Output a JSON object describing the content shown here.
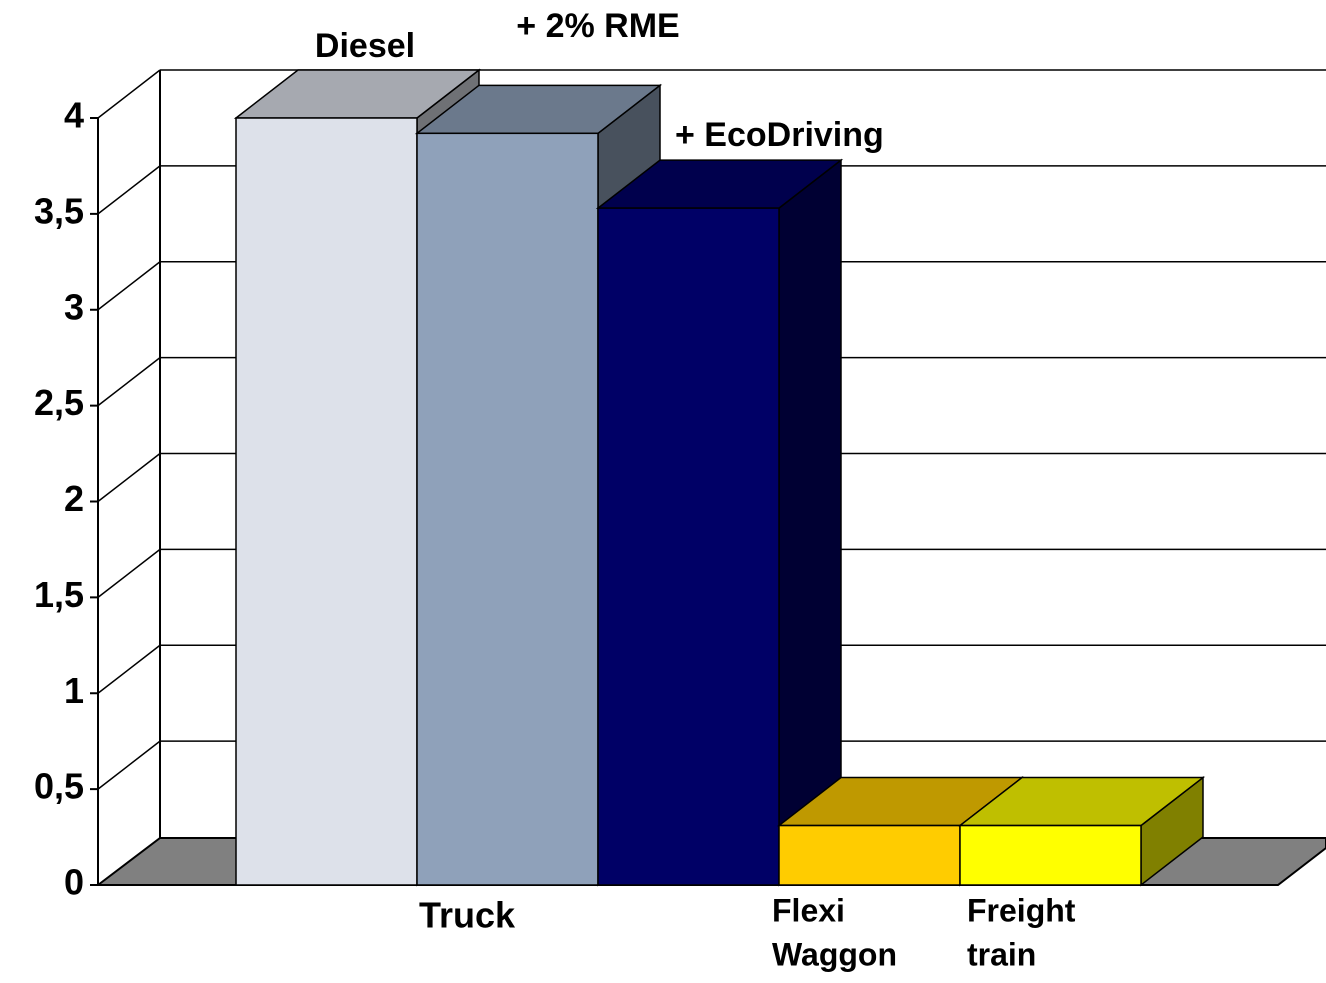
{
  "chart_data": {
    "type": "bar3d",
    "categories": [
      [
        "Truck"
      ],
      [
        "Flexi",
        "Waggon"
      ],
      [
        "Freight",
        "train"
      ]
    ],
    "series": [
      {
        "name": "Diesel",
        "color": "#dde1ea",
        "values": [
          4.0,
          null,
          null
        ]
      },
      {
        "name": "+ 2% RME",
        "color": "#8fa1ba",
        "values": [
          3.92,
          null,
          null
        ]
      },
      {
        "name": "+ EcoDriving",
        "color": "#000066",
        "values": [
          3.53,
          null,
          null
        ]
      },
      {
        "colors": [
          null,
          "#ffcc00",
          "#ffff00"
        ],
        "values": [
          null,
          0.31,
          0.31
        ]
      }
    ],
    "ylim": [
      0,
      4
    ],
    "yticks": [
      0,
      {
        "value": 0.5,
        "label": "0,5"
      },
      1,
      {
        "value": 1.5,
        "label": "1,5"
      },
      2,
      {
        "value": 2.5,
        "label": "2,5"
      },
      3,
      {
        "value": 3.5,
        "label": "3,5"
      },
      4
    ],
    "grid": true
  }
}
